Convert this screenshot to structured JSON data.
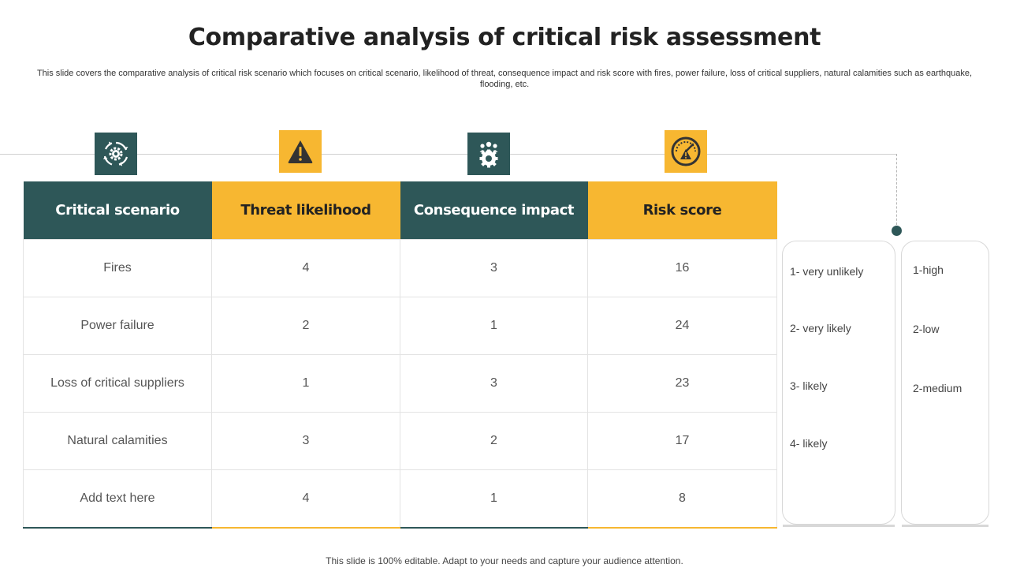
{
  "title": "Comparative analysis of critical risk assessment",
  "subtitle": "This slide covers the comparative analysis of critical risk scenario which focuses on critical scenario, likelihood of threat, consequence impact and risk score with fires, power failure, loss of critical suppliers, natural calamities such as earthquake, flooding, etc.",
  "icons": [
    "gear-cycle-icon",
    "warning-icon",
    "team-gear-icon",
    "gauge-warning-icon"
  ],
  "colors": {
    "teal": "#2e5758",
    "yellow": "#f7b731"
  },
  "table": {
    "headers": [
      "Critical scenario",
      "Threat likelihood",
      "Consequence impact",
      "Risk score"
    ],
    "rows": [
      [
        "Fires",
        "4",
        "3",
        "16"
      ],
      [
        "Power failure",
        "2",
        "1",
        "24"
      ],
      [
        "Loss of critical suppliers",
        "1",
        "3",
        "23"
      ],
      [
        "Natural calamities",
        "3",
        "2",
        "17"
      ],
      [
        "Add text here",
        "4",
        "1",
        "8"
      ]
    ]
  },
  "legend_likelihood": [
    "1- very unlikely",
    "2- very likely",
    "3-  likely",
    "4-  likely"
  ],
  "legend_severity": [
    "1-high",
    "2-low",
    "2-medium"
  ],
  "footer": "This slide is 100% editable. Adapt to your needs and capture your audience attention."
}
